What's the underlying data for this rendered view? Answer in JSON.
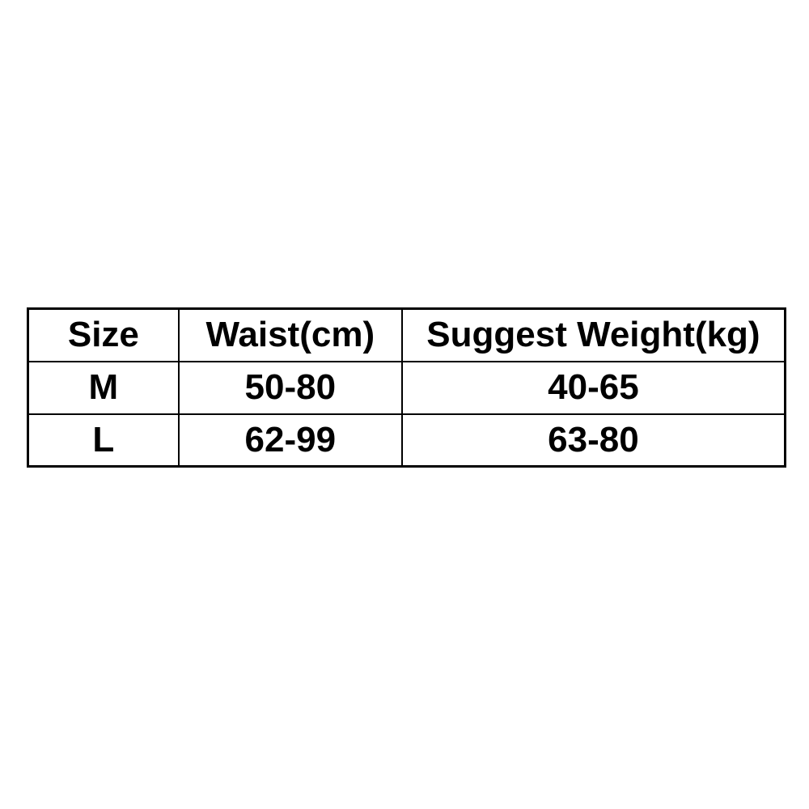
{
  "chart_data": {
    "type": "table",
    "columns": [
      "Size",
      "Waist(cm)",
      "Suggest Weight(kg)"
    ],
    "rows": [
      [
        "M",
        "50-80",
        "40-65"
      ],
      [
        "L",
        "62-99",
        "63-80"
      ]
    ],
    "layout_hints": {
      "grid": "all-borders",
      "text_align": "center",
      "font_weight": "bold"
    }
  },
  "colors": {
    "background": "#ffffff",
    "border": "#000000",
    "text": "#000000"
  }
}
